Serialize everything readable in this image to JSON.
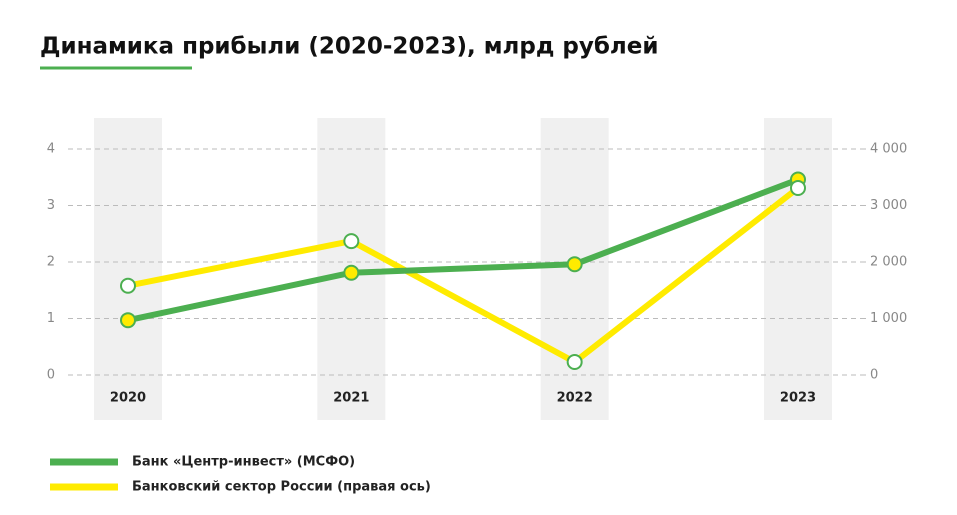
{
  "chart_data": {
    "type": "line",
    "title": "Динамика прибыли (2020-2023), млрд рублей",
    "categories": [
      "2020",
      "2021",
      "2022",
      "2023"
    ],
    "series": [
      {
        "name": "Банк «Центр-инвест» (МСФО)",
        "color": "#4caf50",
        "values": [
          0.97,
          1.81,
          1.96,
          3.46
        ]
      },
      {
        "name": "Банковский сектор России (правая ось)",
        "color": "#ffeb00",
        "values": [
          1580,
          2370,
          230,
          3310
        ],
        "axis": "y2"
      }
    ],
    "ylim": [
      0,
      4
    ],
    "yticks": [
      0,
      1,
      2,
      3,
      4
    ],
    "y2lim": [
      0,
      4000
    ],
    "y2ticks": [
      0,
      {
        "value": 1000,
        "label": "1 000"
      },
      {
        "value": 2000,
        "label": "2 000"
      },
      {
        "value": 3000,
        "label": "3 000"
      },
      {
        "value": 4000,
        "label": "4 000"
      }
    ],
    "grid": true
  }
}
